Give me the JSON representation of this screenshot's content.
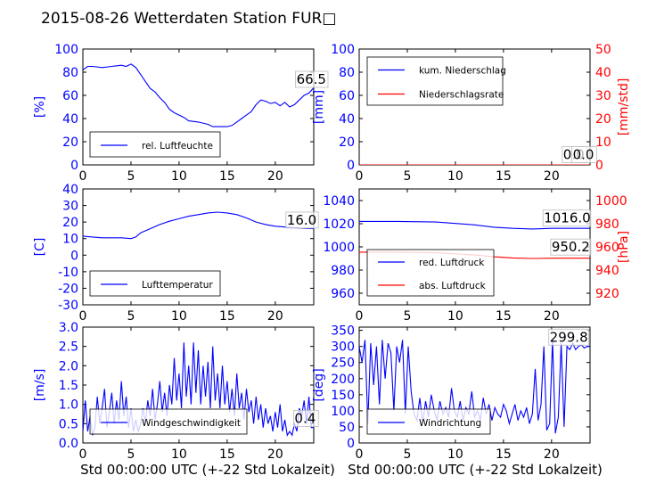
{
  "title": "2015-08-26 Wetterdaten Station FUR□",
  "xlabel": "Std 00:00:00 UTC (+-22 Std Lokalzeit)",
  "colors": {
    "left": "#0000ff",
    "right": "#ff0000",
    "frame": "#000000"
  },
  "chart_data": [
    {
      "type": "line",
      "ylabel": "[%]",
      "xlim": [
        0,
        24
      ],
      "ylim": [
        0,
        100
      ],
      "xticks": [
        0,
        5,
        10,
        15,
        20
      ],
      "yticks": [
        0,
        20,
        40,
        60,
        80,
        100
      ],
      "legend": "bottom-left",
      "series": [
        {
          "name": "rel. Luftfeuchte",
          "color": "#0000ff",
          "x": [
            0,
            0.5,
            1,
            2,
            3,
            4,
            4.5,
            5,
            5.5,
            6,
            6.5,
            7,
            7.5,
            8,
            8.5,
            9,
            9.5,
            10,
            10.5,
            11,
            12,
            13,
            13.5,
            14,
            15,
            15.5,
            16,
            16.5,
            17,
            17.5,
            18,
            18.5,
            19,
            19.5,
            20,
            20.5,
            21,
            21.5,
            22,
            22.5,
            23,
            23.5,
            24
          ],
          "y": [
            82,
            85,
            85,
            84,
            85,
            86,
            85,
            87,
            84,
            78,
            72,
            66,
            63,
            58,
            54,
            48,
            45,
            43,
            41,
            38,
            37,
            35,
            33,
            33,
            33,
            34,
            37,
            40,
            43,
            46,
            52,
            56,
            55,
            53,
            54,
            51,
            54,
            50,
            52,
            56,
            60,
            62,
            66.5
          ]
        }
      ],
      "annotations": [
        {
          "text": "66.5",
          "x": 22.2,
          "y": 70
        }
      ]
    },
    {
      "type": "line",
      "ylabel": "[mm]",
      "y2label": "[mm/std]",
      "xlim": [
        0,
        24
      ],
      "ylim": [
        0,
        100
      ],
      "y2lim": [
        0,
        50
      ],
      "xticks": [
        0,
        5,
        10,
        15,
        20
      ],
      "yticks": [
        0,
        20,
        40,
        60,
        80,
        100
      ],
      "y2ticks": [
        0,
        10,
        20,
        30,
        40,
        50
      ],
      "legend": "top-left",
      "series": [
        {
          "name": "kum. Niederschlag",
          "color": "#0000ff",
          "axis": "left",
          "x": [
            0,
            24
          ],
          "y": [
            0,
            0
          ]
        },
        {
          "name": "Niederschlagsrate",
          "color": "#ff0000",
          "axis": "right",
          "x": [
            0,
            24
          ],
          "y": [
            0,
            0
          ]
        }
      ],
      "annotations": [
        {
          "text": "0.0",
          "x": 21.2,
          "y": 5
        },
        {
          "text": "0.0",
          "x": 22.2,
          "y": 5
        }
      ]
    },
    {
      "type": "line",
      "ylabel": "[C]",
      "xlim": [
        0,
        24
      ],
      "ylim": [
        -30,
        40
      ],
      "xticks": [
        0,
        5,
        10,
        15,
        20
      ],
      "yticks": [
        -30,
        -20,
        -10,
        0,
        10,
        20,
        30,
        40
      ],
      "legend": "bottom-left",
      "series": [
        {
          "name": "Lufttemperatur",
          "color": "#0000ff",
          "x": [
            0,
            1,
            2,
            3,
            4,
            5,
            5.5,
            6,
            7,
            8,
            9,
            10,
            11,
            12,
            13,
            14,
            15,
            16,
            17,
            18,
            19,
            20,
            21,
            22,
            23,
            24
          ],
          "y": [
            11.5,
            11,
            10.5,
            10.5,
            10.5,
            10,
            11,
            13.5,
            16,
            18.5,
            20.5,
            22,
            23.5,
            24.5,
            25.5,
            26,
            25.5,
            24.5,
            22.5,
            20,
            18.5,
            17.5,
            17,
            16.5,
            16.2,
            16
          ]
        }
      ],
      "annotations": [
        {
          "text": "16.0",
          "x": 21.2,
          "y": 18.5
        }
      ]
    },
    {
      "type": "line",
      "ylabel": "",
      "y2label": "[hPa]",
      "xlim": [
        0,
        24
      ],
      "ylim": [
        950,
        1050
      ],
      "y2lim": [
        910,
        1010
      ],
      "xticks": [
        0,
        5,
        10,
        15,
        20
      ],
      "yticks": [
        960,
        980,
        1000,
        1020,
        1040
      ],
      "y2ticks": [
        920,
        940,
        960,
        980,
        1000
      ],
      "legend": "bottom-left",
      "series": [
        {
          "name": "red. Luftdruck",
          "color": "#0000ff",
          "axis": "left",
          "x": [
            0,
            4,
            8,
            12,
            14,
            16,
            18,
            20,
            22,
            24
          ],
          "y": [
            1022,
            1022,
            1021.5,
            1019,
            1017,
            1016,
            1015.5,
            1016,
            1016,
            1016
          ]
        },
        {
          "name": "abs. Luftdruck",
          "color": "#ff0000",
          "axis": "right",
          "x": [
            0,
            4,
            8,
            12,
            14,
            16,
            18,
            20,
            22,
            24
          ],
          "y": [
            955.5,
            955.5,
            955,
            953,
            951.5,
            950.5,
            950,
            950.2,
            950.2,
            950.2
          ]
        }
      ],
      "annotations": [
        {
          "text": "1016.0",
          "x": 19.2,
          "y": 1021
        },
        {
          "text": "950.2",
          "x": 20,
          "y": 996
        }
      ]
    },
    {
      "type": "line",
      "ylabel": "[m/s]",
      "xlim": [
        0,
        24
      ],
      "ylim": [
        0,
        3
      ],
      "xticks": [
        0,
        5,
        10,
        15,
        20
      ],
      "yticks": [
        0.0,
        0.5,
        1.0,
        1.5,
        2.0,
        2.5,
        3.0
      ],
      "legend": "bottom-left",
      "series": [
        {
          "name": "Windgeschwindigkeit",
          "color": "#0000ff",
          "x": [
            0,
            0.25,
            0.5,
            0.75,
            1,
            1.25,
            1.5,
            1.75,
            2,
            2.25,
            2.5,
            2.75,
            3,
            3.25,
            3.5,
            3.75,
            4,
            4.25,
            4.5,
            4.75,
            5,
            5.25,
            5.5,
            5.75,
            6,
            6.25,
            6.5,
            6.75,
            7,
            7.25,
            7.5,
            7.75,
            8,
            8.25,
            8.5,
            8.75,
            9,
            9.25,
            9.5,
            9.75,
            10,
            10.25,
            10.5,
            10.75,
            11,
            11.25,
            11.5,
            11.75,
            12,
            12.25,
            12.5,
            12.75,
            13,
            13.25,
            13.5,
            13.75,
            14,
            14.25,
            14.5,
            14.75,
            15,
            15.25,
            15.5,
            15.75,
            16,
            16.25,
            16.5,
            16.75,
            17,
            17.25,
            17.5,
            17.75,
            18,
            18.25,
            18.5,
            18.75,
            19,
            19.25,
            19.5,
            19.75,
            20,
            20.25,
            20.5,
            20.75,
            21,
            21.25,
            21.5,
            21.75,
            22,
            22.25,
            22.5,
            22.75,
            23,
            23.25,
            23.5,
            23.75,
            24
          ],
          "y": [
            0.3,
            1.1,
            0.3,
            0.7,
            0.2,
            0.4,
            1.2,
            0.5,
            0.9,
            1.4,
            0.4,
            0.8,
            1.3,
            0.5,
            1.1,
            0.6,
            1.6,
            0.7,
            1.2,
            0.4,
            0.9,
            0.3,
            0.6,
            0.3,
            0.5,
            0.9,
            0.5,
            1.1,
            0.7,
            1.4,
            0.6,
            1.0,
            1.6,
            0.8,
            1.3,
            0.7,
            1.5,
            1.0,
            2.2,
            1.1,
            1.8,
            0.9,
            2.6,
            1.2,
            2.0,
            1.0,
            2.6,
            1.3,
            2.4,
            1.0,
            2.0,
            1.2,
            2.1,
            0.9,
            2.5,
            1.1,
            1.8,
            0.9,
            2.0,
            1.0,
            1.6,
            0.8,
            1.4,
            0.7,
            1.8,
            0.9,
            1.3,
            0.6,
            1.4,
            0.8,
            1.1,
            0.5,
            1.2,
            0.6,
            1.0,
            0.4,
            0.9,
            0.5,
            0.7,
            0.3,
            0.8,
            0.4,
            1.0,
            0.3,
            0.6,
            0.2,
            0.3,
            0.2,
            0.5,
            0.3,
            0.9,
            0.7,
            1.1,
            0.5,
            1.2,
            0.4,
            0.4
          ]
        }
      ],
      "annotations": [
        {
          "text": "0.4",
          "x": 22,
          "y": 0.52
        }
      ]
    },
    {
      "type": "line",
      "ylabel": "[deg]",
      "xlim": [
        0,
        24
      ],
      "ylim": [
        0,
        360
      ],
      "xticks": [
        0,
        5,
        10,
        15,
        20
      ],
      "yticks": [
        0,
        50,
        100,
        150,
        200,
        250,
        300,
        350
      ],
      "legend": "bottom-left",
      "series": [
        {
          "name": "Windrichtung",
          "color": "#0000ff",
          "x": [
            0,
            0.3,
            0.6,
            0.9,
            1.2,
            1.5,
            1.8,
            2.1,
            2.4,
            2.7,
            3,
            3.3,
            3.6,
            3.9,
            4.2,
            4.5,
            4.8,
            5.1,
            5.4,
            5.7,
            6,
            6.3,
            6.6,
            6.9,
            7.2,
            7.5,
            7.8,
            8.1,
            8.4,
            8.7,
            9,
            9.3,
            9.6,
            9.9,
            10.2,
            10.5,
            10.8,
            11.1,
            11.4,
            11.7,
            12,
            12.3,
            12.6,
            12.9,
            13.2,
            13.5,
            13.8,
            14.1,
            14.4,
            14.7,
            15,
            15.3,
            15.6,
            15.9,
            16.2,
            16.5,
            16.8,
            17.1,
            17.4,
            17.7,
            18,
            18.3,
            18.6,
            18.9,
            19.2,
            19.5,
            19.8,
            20.1,
            20.4,
            20.7,
            21,
            21.3,
            21.6,
            21.9,
            22.2,
            22.5,
            22.8,
            23.1,
            23.4,
            23.7,
            24
          ],
          "y": [
            300,
            250,
            320,
            60,
            310,
            180,
            300,
            120,
            320,
            200,
            310,
            280,
            100,
            300,
            250,
            320,
            90,
            300,
            160,
            90,
            70,
            140,
            60,
            130,
            80,
            150,
            100,
            70,
            130,
            90,
            110,
            80,
            170,
            100,
            80,
            130,
            70,
            110,
            90,
            160,
            80,
            100,
            70,
            140,
            90,
            120,
            70,
            110,
            90,
            80,
            120,
            100,
            60,
            90,
            120,
            70,
            100,
            80,
            110,
            60,
            90,
            230,
            70,
            120,
            300,
            40,
            60,
            320,
            30,
            80,
            310,
            50,
            300,
            290,
            310,
            290,
            300,
            305,
            295,
            300,
            299.8
          ]
        }
      ],
      "annotations": [
        {
          "text": "299.8",
          "x": 19.8,
          "y": 315
        }
      ]
    }
  ]
}
